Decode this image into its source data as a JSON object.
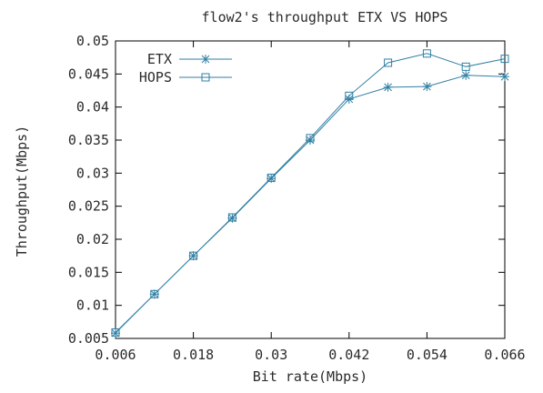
{
  "chart_data": {
    "type": "line",
    "title": "flow2's throughput ETX VS HOPS",
    "xlabel": "Bit rate(Mbps)",
    "ylabel": "Throughput(Mbps)",
    "xlim": [
      0.006,
      0.066
    ],
    "ylim": [
      0.005,
      0.05
    ],
    "x_ticks": [
      "0.006",
      "0.018",
      "0.03",
      "0.042",
      "0.054",
      "0.066"
    ],
    "y_ticks": [
      "0.005",
      "0.01",
      "0.015",
      "0.02",
      "0.025",
      "0.03",
      "0.035",
      "0.04",
      "0.045",
      "0.05"
    ],
    "grid": false,
    "legend_position": "top-left",
    "x": [
      0.006,
      0.012,
      0.018,
      0.024,
      0.03,
      0.036,
      0.042,
      0.048,
      0.054,
      0.06,
      0.066
    ],
    "series": [
      {
        "name": "ETX",
        "marker": "asterisk",
        "color": "#2f7fa3",
        "values": [
          0.0058,
          0.0117,
          0.0175,
          0.0232,
          0.0292,
          0.035,
          0.0412,
          0.043,
          0.0431,
          0.0448,
          0.0446
        ]
      },
      {
        "name": "HOPS",
        "marker": "square",
        "color": "#2f7fa3",
        "values": [
          0.0059,
          0.0117,
          0.0175,
          0.0233,
          0.0293,
          0.0353,
          0.0417,
          0.0467,
          0.0481,
          0.0461,
          0.0473
        ]
      }
    ]
  }
}
